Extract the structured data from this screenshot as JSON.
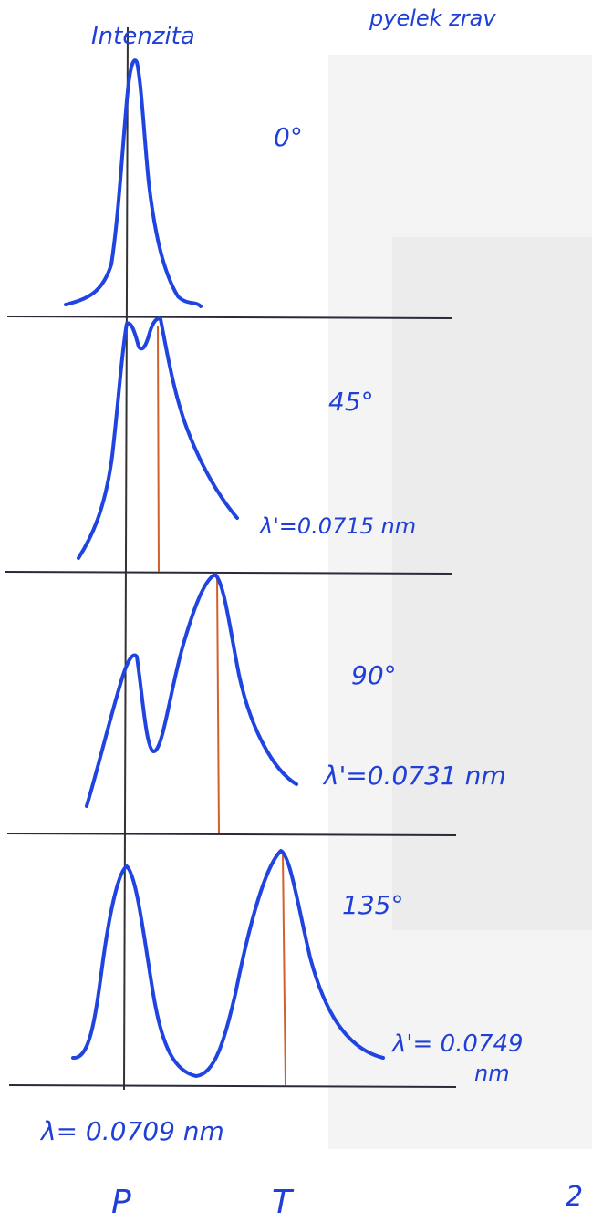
{
  "axis_label": "Intenzita",
  "header_fragment": "pyelek zrav",
  "panels": [
    {
      "angle": "0°"
    },
    {
      "angle": "45°",
      "wavelength": "λ'=0.0715 nm"
    },
    {
      "angle": "90°",
      "wavelength": "λ'=0.0731 nm"
    },
    {
      "angle": "135°",
      "wavelength_lines": [
        "λ'= 0.0749",
        "nm"
      ]
    }
  ],
  "reference": "λ= 0.0709 nm",
  "peak_labels": [
    "P",
    "T"
  ],
  "page_number": "2"
}
